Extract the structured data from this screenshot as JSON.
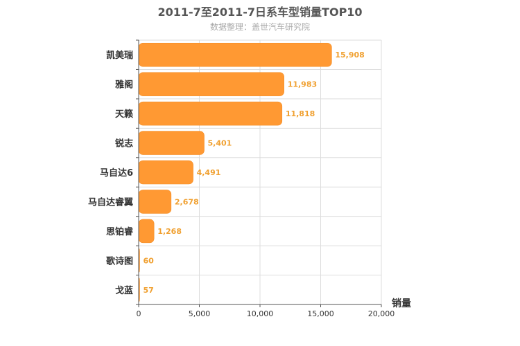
{
  "chart_data": {
    "type": "bar",
    "orientation": "horizontal",
    "title": "2011-7至2011-7日系车型销量TOP10",
    "subtitle": "数据整理：盖世汽车研究院",
    "categories": [
      "凯美瑞",
      "雅阁",
      "天籁",
      "锐志",
      "马自达6",
      "马自达睿翼",
      "思铂睿",
      "歌诗图",
      "戈蓝"
    ],
    "values": [
      15908,
      11983,
      11818,
      5401,
      4491,
      2678,
      1268,
      60,
      57
    ],
    "value_labels": [
      "15,908",
      "11,983",
      "11,818",
      "5,401",
      "4,491",
      "2,678",
      "1,268",
      "60",
      "57"
    ],
    "xlabel": "销量",
    "xlim": [
      0,
      20000
    ],
    "x_ticks": [
      0,
      5000,
      10000,
      15000,
      20000
    ],
    "x_tick_labels": [
      "0",
      "5,000",
      "10,000",
      "15,000",
      "20,000"
    ],
    "grid": true,
    "colors": {
      "bar": "#ff9933",
      "bar_edge": "#f08a20",
      "data_label": "#f0a030"
    }
  }
}
